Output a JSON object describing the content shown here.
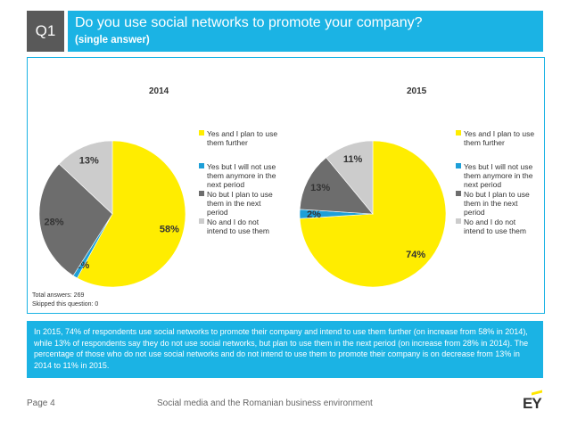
{
  "header": {
    "badge": "Q1",
    "title": "Do you use social networks to promote your company?",
    "subtitle": "(single answer)"
  },
  "legend_labels": [
    "Yes and I plan to use them further",
    "Yes but I will not use them anymore in the next period",
    "No but I plan to use them in the next period",
    "No and I do not intend to use them"
  ],
  "colors": [
    "#ffed00",
    "#1d9fd8",
    "#6d6d6d",
    "#cccccc"
  ],
  "chart_data": [
    {
      "type": "pie",
      "title": "2014",
      "categories": [
        "Yes and I plan to use them further",
        "Yes but I will not use them anymore in the next period",
        "No but I plan to use them in the next period",
        "No and I do not intend to use them"
      ],
      "values": [
        58,
        1,
        28,
        13
      ],
      "labels": [
        "58%",
        "1%",
        "28%",
        "13%"
      ],
      "legend": "right"
    },
    {
      "type": "pie",
      "title": "2015",
      "categories": [
        "Yes and I plan to use them further",
        "Yes but I will not use them anymore in the next period",
        "No but I plan to use them in the next period",
        "No and I do not intend to use them"
      ],
      "values": [
        74,
        2,
        13,
        11
      ],
      "labels": [
        "74%",
        "2%",
        "13%",
        "11%"
      ],
      "legend": "right"
    }
  ],
  "notes": {
    "total": "Total answers: 269",
    "skipped": "Skipped this question: 0"
  },
  "summary": "In 2015, 74% of respondents use social networks to promote their company and intend to use them further (on increase from 58% in 2014), while 13% of respondents say they do not use social networks, but plan to use them in the next period (on increase from 28% in 2014). The percentage of those who do not use social networks and do not intend to use them to promote their company is on decrease from 13% in 2014 to 11% in 2015.",
  "footer": {
    "page": "Page 4",
    "center": "Social media and the Romanian business environment",
    "logo": "EY"
  }
}
